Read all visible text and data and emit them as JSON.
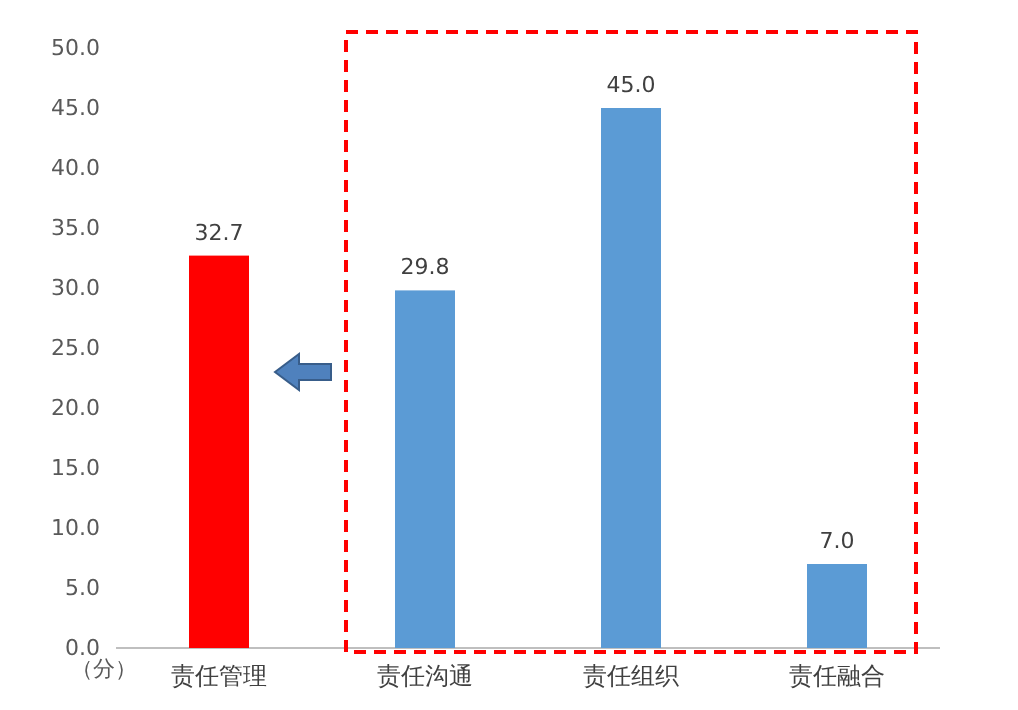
{
  "chart_data": {
    "type": "bar",
    "ylabel": "（分）",
    "categories": [
      "责任管理",
      "责任沟通",
      "责任组织",
      "责任融合"
    ],
    "values": [
      32.7,
      29.8,
      45.0,
      7.0
    ],
    "colors": [
      "#ff0000",
      "#5b9bd5",
      "#5b9bd5",
      "#5b9bd5"
    ],
    "value_labels": [
      "32.7",
      "29.8",
      "45.0",
      "7.0"
    ],
    "ylim": [
      0,
      50
    ],
    "yticks": [
      {
        "value": 0,
        "label": "0.0"
      },
      {
        "value": 5,
        "label": "5.0"
      },
      {
        "value": 10,
        "label": "10.0"
      },
      {
        "value": 15,
        "label": "15.0"
      },
      {
        "value": 20,
        "label": "20.0"
      },
      {
        "value": 25,
        "label": "25.0"
      },
      {
        "value": 30,
        "label": "30.0"
      },
      {
        "value": 35,
        "label": "35.0"
      },
      {
        "value": 40,
        "label": "40.0"
      },
      {
        "value": 45,
        "label": "45.0"
      },
      {
        "value": 50,
        "label": "50.0"
      }
    ],
    "grid": false,
    "legend": false
  }
}
